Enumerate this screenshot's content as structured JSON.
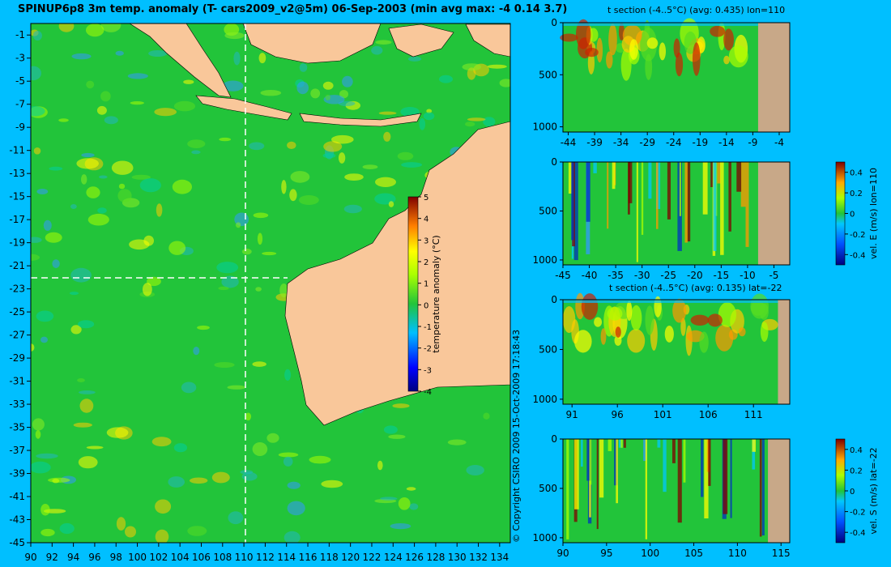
{
  "main_title": "SPINUP6p8 3m temp. anomaly (T- cars2009_v2@5m) 06-Sep-2003 (min avg max: -4 0.14 3.7)",
  "copyright": "© Copyright CSIRO 2009  15-Oct-2009 17:18:43",
  "colors": {
    "background": "#00bfff",
    "land": "#f9c79a",
    "section_land": "#c8a888",
    "ocean_base": "#22c43a",
    "transect": "#ffffff"
  },
  "map": {
    "x_ticks": [
      "90",
      "92",
      "94",
      "96",
      "98",
      "100",
      "102",
      "104",
      "106",
      "108",
      "110",
      "112",
      "114",
      "116",
      "118",
      "120",
      "122",
      "124",
      "126",
      "128",
      "130",
      "132",
      "134"
    ],
    "y_ticks": [
      "-1",
      "-3",
      "-5",
      "-7",
      "-9",
      "-11",
      "-13",
      "-15",
      "-17",
      "-19",
      "-21",
      "-23",
      "-25",
      "-27",
      "-29",
      "-31",
      "-33",
      "-35",
      "-37",
      "-39",
      "-41",
      "-43",
      "-45"
    ],
    "xlim": [
      90,
      135
    ],
    "ylim": [
      -45,
      0
    ],
    "transect_lon": 110,
    "transect_lat": -22
  },
  "colorbar": {
    "label": "temperature anomaly (°C)",
    "ticks": [
      "5",
      "4",
      "3",
      "2",
      "1",
      "0",
      "-1",
      "-2",
      "-3",
      "-4"
    ],
    "range": [
      -4,
      5
    ]
  },
  "chart_data": [
    {
      "type": "heatmap",
      "title": "t section (-4..5°C) (avg: 0.435) lon=110",
      "x_ticks": [
        "-44",
        "-39",
        "-34",
        "-29",
        "-24",
        "-19",
        "-14",
        "-9",
        "-4"
      ],
      "xlim": [
        -45,
        -2
      ],
      "y_ticks": [
        "0",
        "500",
        "1000"
      ],
      "ylim": [
        0,
        1050
      ],
      "land_from": -8
    },
    {
      "type": "heatmap",
      "title": "",
      "x_ticks": [
        "-45",
        "-40",
        "-35",
        "-30",
        "-25",
        "-20",
        "-15",
        "-10",
        "-5"
      ],
      "xlim": [
        -45,
        -2
      ],
      "y_ticks": [
        "0",
        "500",
        "1000"
      ],
      "ylim": [
        0,
        1050
      ],
      "land_from": -8,
      "colorbar": {
        "label": "vel. E (m/s) lon=110",
        "ticks": [
          "0.4",
          "0.2",
          "0",
          "-0.2",
          "-0.4"
        ]
      }
    },
    {
      "type": "heatmap",
      "title": "t section (-4..5°C) (avg: 0.135) lat=-22",
      "x_ticks": [
        "91",
        "96",
        "101",
        "106",
        "111"
      ],
      "xlim": [
        90,
        115
      ],
      "y_ticks": [
        "0",
        "500",
        "1000"
      ],
      "ylim": [
        0,
        1050
      ],
      "land_from": 113.7
    },
    {
      "type": "heatmap",
      "title": "",
      "x_ticks": [
        "90",
        "95",
        "100",
        "105",
        "110",
        "115"
      ],
      "xlim": [
        90,
        116
      ],
      "y_ticks": [
        "0",
        "500",
        "1000"
      ],
      "ylim": [
        0,
        1050
      ],
      "land_from": 113.5,
      "colorbar": {
        "label": "vel. S (m/s) lat=-22",
        "ticks": [
          "0.4",
          "0.2",
          "0",
          "-0.2",
          "-0.4"
        ]
      }
    }
  ]
}
